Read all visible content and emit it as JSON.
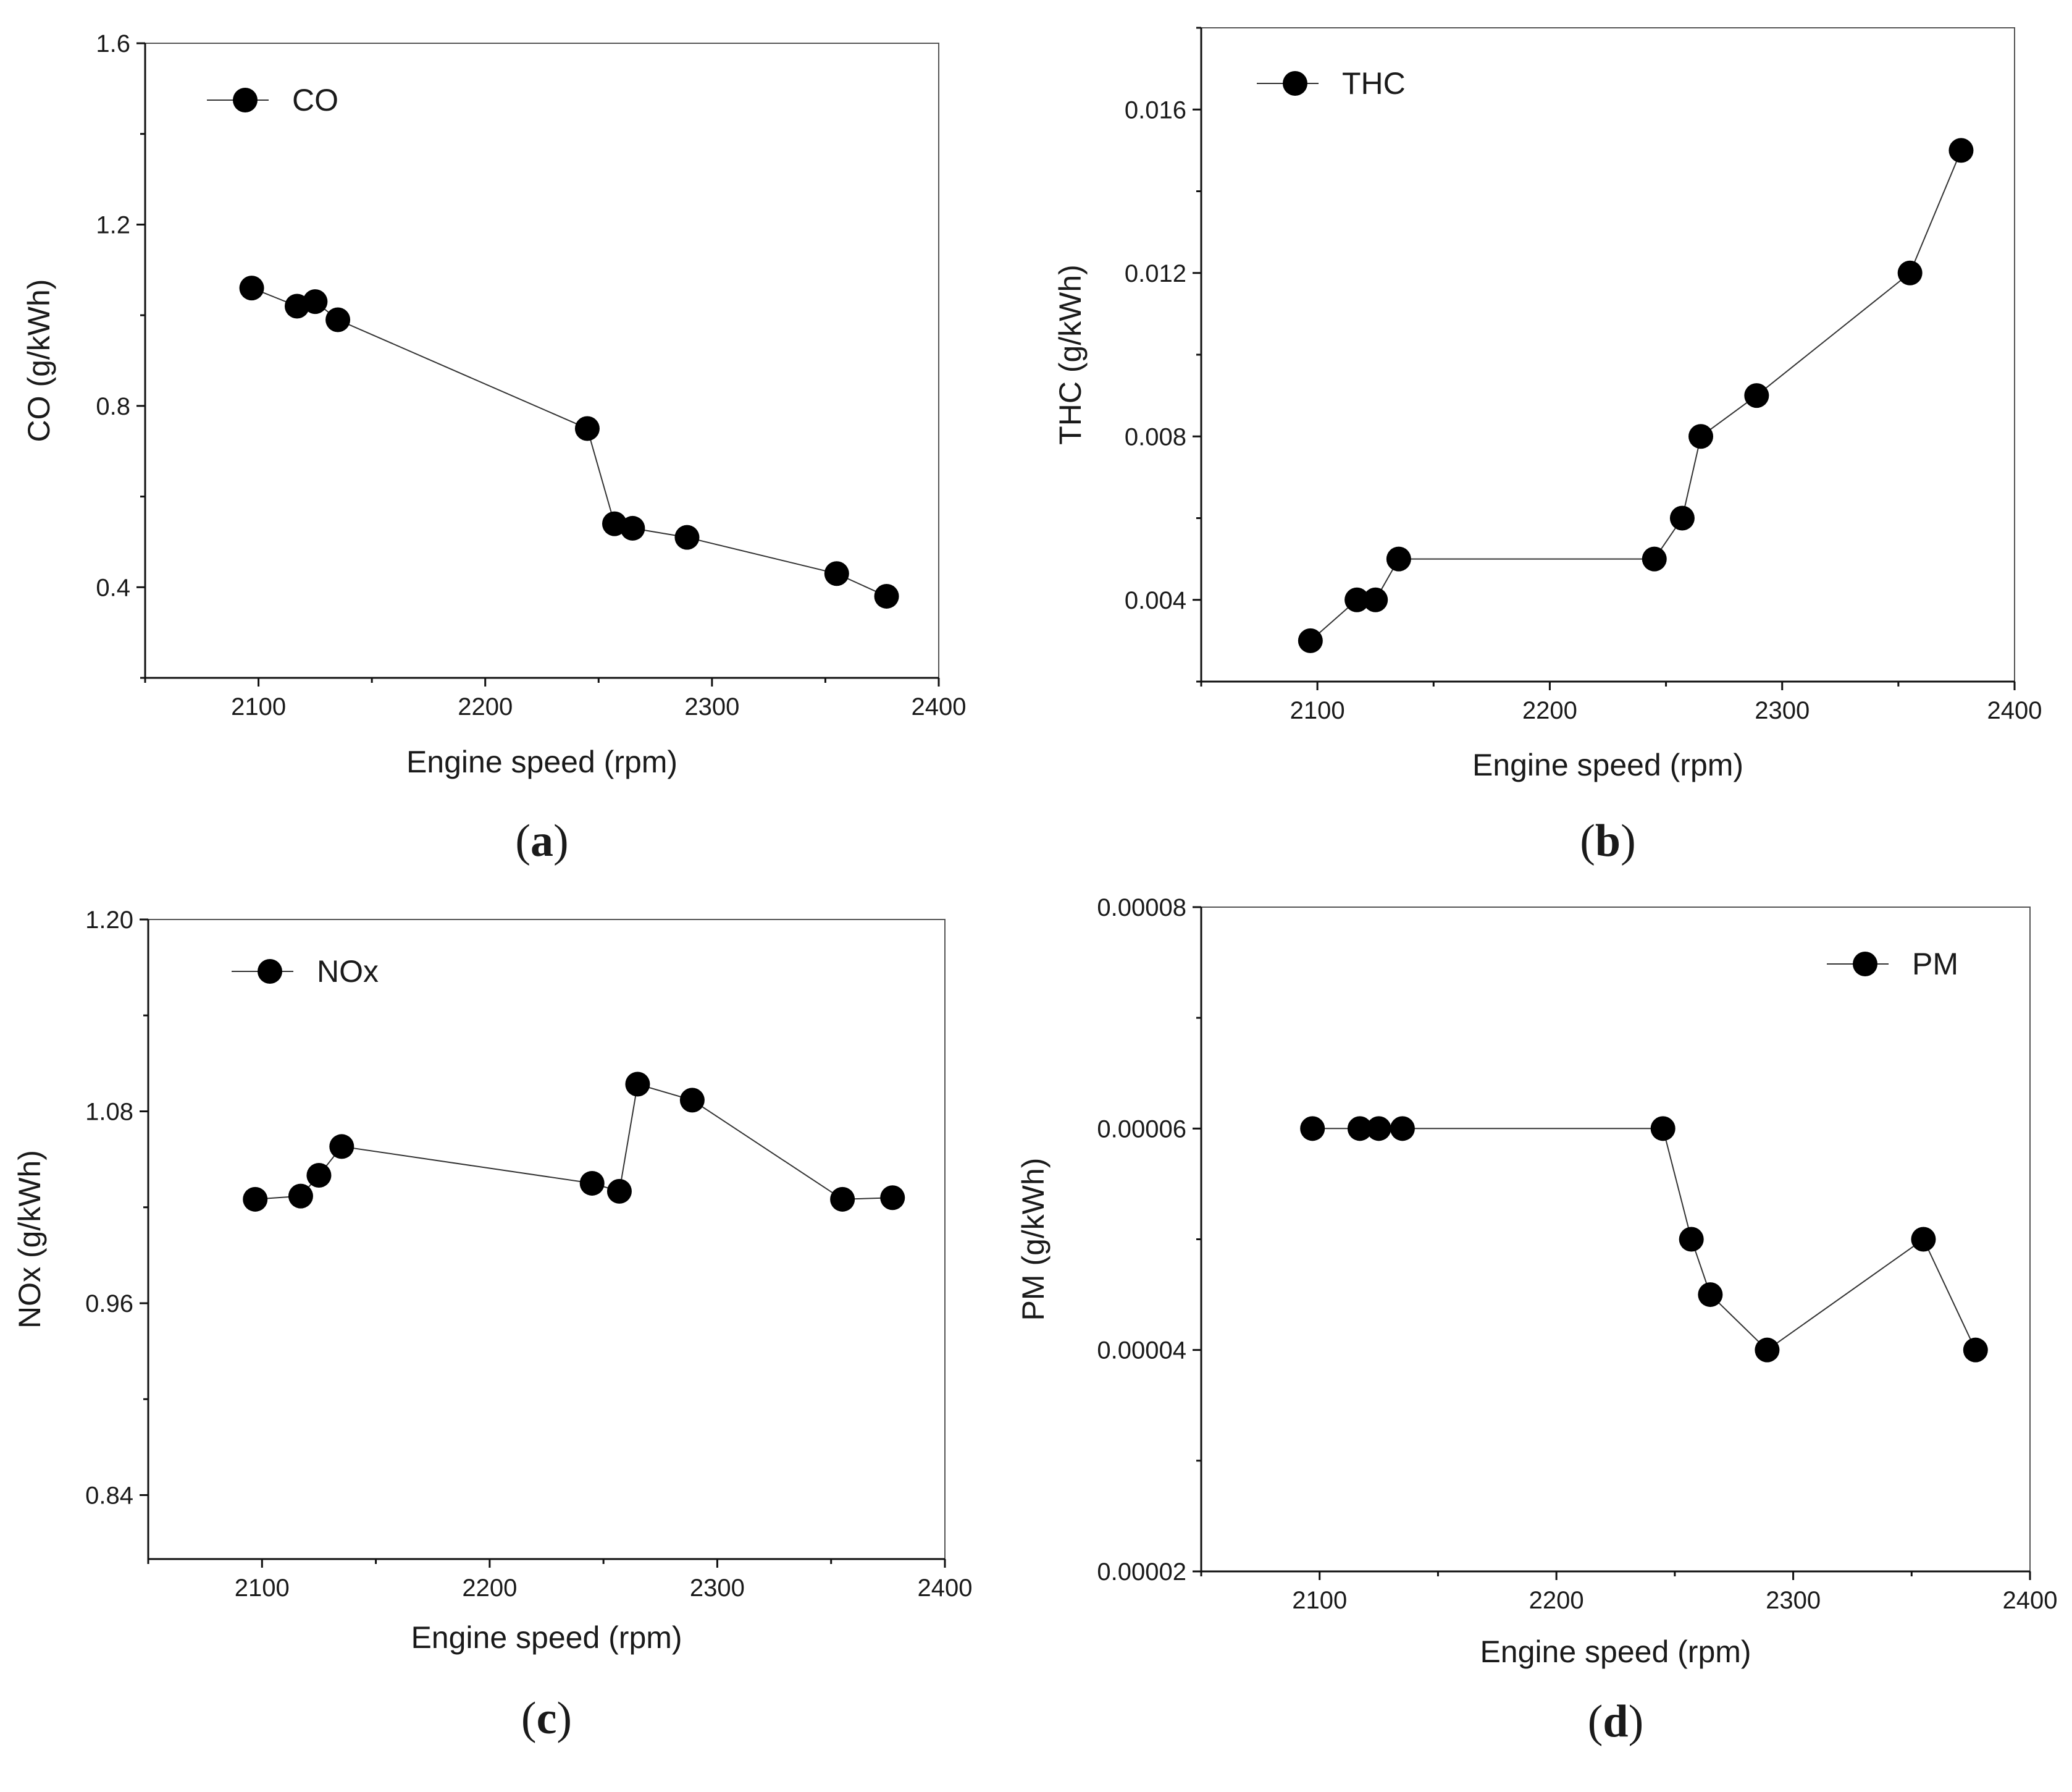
{
  "chart_data": [
    {
      "type": "line",
      "panel_label": "a",
      "xlabel": "Engine speed (rpm)",
      "ylabel": "CO (g/kWh)",
      "xlim": [
        2050,
        2400
      ],
      "ylim": [
        0.2,
        1.6
      ],
      "xticks": [
        2100,
        2200,
        2300,
        2400
      ],
      "yticks": [
        0.4,
        0.8,
        1.2,
        1.6
      ],
      "yticks_fmt": [
        "0.4",
        "0.8",
        "1.2",
        "1.6"
      ],
      "legend_position": "top-left",
      "series": [
        {
          "name": "CO",
          "x": [
            2097,
            2117,
            2125,
            2135,
            2245,
            2257,
            2265,
            2289,
            2355,
            2377
          ],
          "y": [
            1.06,
            1.02,
            1.03,
            0.99,
            0.75,
            0.54,
            0.53,
            0.51,
            0.43,
            0.38
          ]
        }
      ]
    },
    {
      "type": "line",
      "panel_label": "b",
      "xlabel": "Engine speed (rpm)",
      "ylabel": "THC (g/kWh)",
      "xlim": [
        2050,
        2400
      ],
      "ylim": [
        0.002,
        0.018
      ],
      "xticks": [
        2100,
        2200,
        2300,
        2400
      ],
      "yticks": [
        0.004,
        0.008,
        0.012,
        0.016
      ],
      "yticks_fmt": [
        "0.004",
        "0.008",
        "0.012",
        "0.016"
      ],
      "legend_position": "top-left",
      "series": [
        {
          "name": "THC",
          "x": [
            2097,
            2117,
            2125,
            2135,
            2245,
            2257,
            2265,
            2289,
            2355,
            2377
          ],
          "y": [
            0.003,
            0.004,
            0.004,
            0.005,
            0.005,
            0.006,
            0.008,
            0.009,
            0.012,
            0.015
          ]
        }
      ]
    },
    {
      "type": "line",
      "panel_label": "c",
      "xlabel": "Engine speed (rpm)",
      "ylabel": "NOx (g/kWh)",
      "xlim": [
        2050,
        2400
      ],
      "ylim": [
        0.8,
        1.2
      ],
      "xticks": [
        2100,
        2200,
        2300,
        2400
      ],
      "yticks": [
        0.84,
        0.96,
        1.08,
        1.2
      ],
      "yticks_fmt": [
        "0.84",
        "0.96",
        "1.08",
        "1.20"
      ],
      "legend_position": "top-left",
      "series": [
        {
          "name": "NOx",
          "x": [
            2097,
            2117,
            2125,
            2135,
            2245,
            2257,
            2265,
            2289,
            2355,
            2377
          ],
          "y": [
            1.025,
            1.027,
            1.04,
            1.058,
            1.035,
            1.03,
            1.097,
            1.087,
            1.025,
            1.026
          ]
        }
      ]
    },
    {
      "type": "line",
      "panel_label": "d",
      "xlabel": "Engine speed (rpm)",
      "ylabel": "PM (g/kWh)",
      "xlim": [
        2050,
        2400
      ],
      "ylim": [
        2e-05,
        8e-05
      ],
      "xticks": [
        2100,
        2200,
        2300,
        2400
      ],
      "yticks": [
        2e-05,
        4e-05,
        6e-05,
        8e-05
      ],
      "yticks_fmt": [
        "0.00002",
        "0.00004",
        "0.00006",
        "0.00008"
      ],
      "legend_position": "top-right",
      "series": [
        {
          "name": "PM",
          "x": [
            2097,
            2117,
            2125,
            2135,
            2245,
            2257,
            2265,
            2289,
            2355,
            2377
          ],
          "y": [
            6e-05,
            6e-05,
            6e-05,
            6e-05,
            6e-05,
            5e-05,
            4.5e-05,
            4e-05,
            5e-05,
            4e-05
          ]
        }
      ]
    }
  ]
}
